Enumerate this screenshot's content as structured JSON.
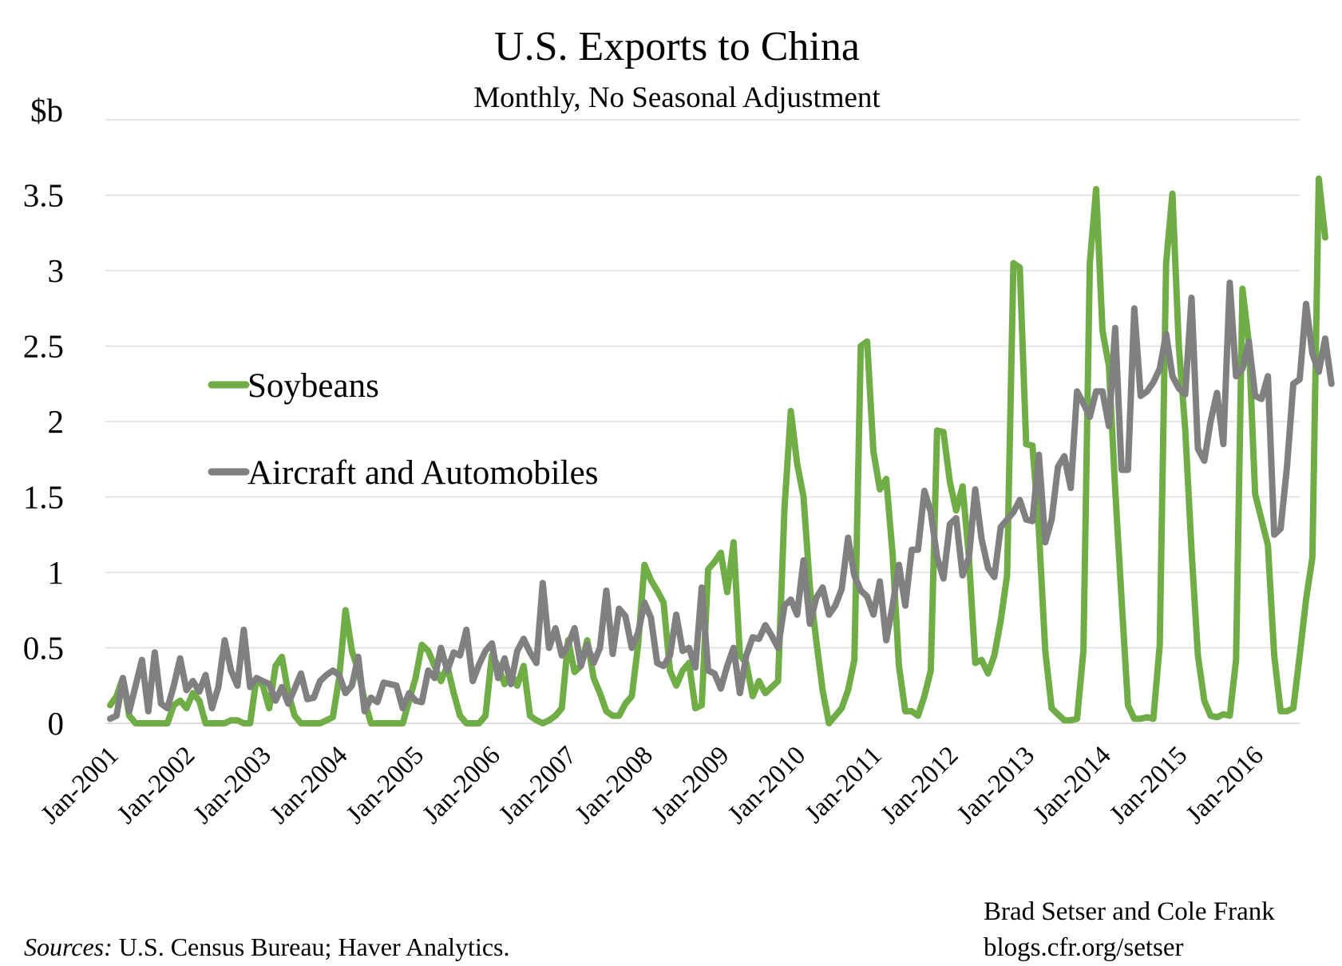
{
  "chart_data": {
    "type": "line",
    "title": "U.S. Exports to China",
    "subtitle": "Monthly, No Seasonal Adjustment",
    "ylabel": "$b",
    "ylim": [
      0,
      4
    ],
    "yticks": [
      {
        "value": 0,
        "label": "0"
      },
      {
        "value": 0.5,
        "label": "0.5"
      },
      {
        "value": 1,
        "label": "1"
      },
      {
        "value": 1.5,
        "label": "1.5"
      },
      {
        "value": 2,
        "label": "2"
      },
      {
        "value": 2.5,
        "label": "2.5"
      },
      {
        "value": 3,
        "label": "3"
      },
      {
        "value": 3.5,
        "label": "3.5"
      },
      {
        "value": 4,
        "label": ""
      }
    ],
    "x_start": "Jan-2001",
    "x_end": "Aug-2016",
    "xticks": [
      "Jan-2001",
      "Jan-2002",
      "Jan-2003",
      "Jan-2004",
      "Jan-2005",
      "Jan-2006",
      "Jan-2007",
      "Jan-2008",
      "Jan-2009",
      "Jan-2010",
      "Jan-2011",
      "Jan-2012",
      "Jan-2013",
      "Jan-2014",
      "Jan-2015",
      "Jan-2016"
    ],
    "grid": true,
    "legend": "center-left",
    "series": [
      {
        "name": "Soybeans",
        "color": "#70ad47",
        "values": [
          0.12,
          0.18,
          0.3,
          0.05,
          0,
          0,
          0,
          0,
          0,
          0,
          0.12,
          0.15,
          0.1,
          0.2,
          0.15,
          0,
          0,
          0,
          0,
          0.02,
          0.02,
          0,
          0,
          0.3,
          0.25,
          0.1,
          0.38,
          0.44,
          0.2,
          0.05,
          0,
          0,
          0,
          0,
          0.02,
          0.04,
          0.3,
          0.75,
          0.48,
          0.35,
          0.15,
          0,
          0,
          0,
          0,
          0,
          0,
          0.15,
          0.3,
          0.52,
          0.48,
          0.38,
          0.28,
          0.38,
          0.2,
          0.05,
          0,
          0,
          0,
          0.05,
          0.45,
          0.38,
          0.26,
          0.33,
          0.25,
          0.38,
          0.05,
          0.02,
          0,
          0.02,
          0.05,
          0.1,
          0.55,
          0.34,
          0.38,
          0.55,
          0.3,
          0.2,
          0.08,
          0.05,
          0.05,
          0.13,
          0.18,
          0.52,
          1.05,
          0.95,
          0.88,
          0.8,
          0.35,
          0.25,
          0.35,
          0.4,
          0.1,
          0.12,
          1.02,
          1.07,
          1.13,
          0.87,
          1.2,
          0.45,
          0.4,
          0.18,
          0.28,
          0.2,
          0.24,
          0.28,
          1.42,
          2.07,
          1.72,
          1.5,
          0.9,
          0.55,
          0.22,
          0,
          0.05,
          0.1,
          0.22,
          0.42,
          2.5,
          2.53,
          1.8,
          1.55,
          1.62,
          1.12,
          0.38,
          0.08,
          0.08,
          0.05,
          0.18,
          0.35,
          1.94,
          1.93,
          1.6,
          1.41,
          1.57,
          1.1,
          0.4,
          0.42,
          0.33,
          0.45,
          0.68,
          0.98,
          3.05,
          3.02,
          1.85,
          1.84,
          1.28,
          0.48,
          0.1,
          0.06,
          0.02,
          0.02,
          0.03,
          0.48,
          3.05,
          3.54,
          2.6,
          2.37,
          1.55,
          0.82,
          0.12,
          0.03,
          0.03,
          0.04,
          0.03,
          0.52,
          3.05,
          3.51,
          2.5,
          1.95,
          1.15,
          0.45,
          0.15,
          0.05,
          0.04,
          0.06,
          0.05,
          0.42,
          2.88,
          2.52,
          1.52,
          1.35,
          1.18,
          0.45,
          0.08,
          0.08,
          0.1,
          0.45,
          0.82,
          1.1,
          3.61,
          3.22
        ]
      },
      {
        "name": "Aircraft and Automobiles",
        "color": "#808080",
        "values": [
          0.03,
          0.05,
          0.3,
          0.08,
          0.25,
          0.42,
          0.08,
          0.47,
          0.13,
          0.1,
          0.25,
          0.43,
          0.22,
          0.28,
          0.21,
          0.32,
          0.1,
          0.24,
          0.55,
          0.35,
          0.25,
          0.62,
          0.24,
          0.3,
          0.28,
          0.26,
          0.15,
          0.24,
          0.13,
          0.23,
          0.33,
          0.16,
          0.17,
          0.28,
          0.32,
          0.35,
          0.32,
          0.2,
          0.25,
          0.44,
          0.08,
          0.17,
          0.14,
          0.27,
          0.26,
          0.25,
          0.1,
          0.2,
          0.15,
          0.14,
          0.35,
          0.3,
          0.5,
          0.35,
          0.47,
          0.45,
          0.62,
          0.28,
          0.39,
          0.48,
          0.53,
          0.3,
          0.43,
          0.26,
          0.48,
          0.56,
          0.47,
          0.4,
          0.93,
          0.5,
          0.63,
          0.45,
          0.52,
          0.63,
          0.38,
          0.52,
          0.4,
          0.5,
          0.88,
          0.46,
          0.76,
          0.71,
          0.5,
          0.6,
          0.8,
          0.7,
          0.4,
          0.38,
          0.45,
          0.72,
          0.48,
          0.5,
          0.37,
          0.9,
          0.35,
          0.33,
          0.23,
          0.38,
          0.5,
          0.2,
          0.45,
          0.57,
          0.56,
          0.65,
          0.58,
          0.5,
          0.78,
          0.82,
          0.72,
          1.08,
          0.66,
          0.83,
          0.9,
          0.72,
          0.78,
          0.89,
          1.23,
          0.98,
          0.88,
          0.84,
          0.72,
          0.94,
          0.55,
          0.78,
          1.05,
          0.78,
          1.15,
          1.15,
          1.54,
          1.4,
          1.1,
          0.96,
          1.32,
          1.36,
          0.98,
          1.1,
          1.55,
          1.22,
          1.03,
          0.97,
          1.3,
          1.35,
          1.4,
          1.48,
          1.35,
          1.34,
          1.78,
          1.2,
          1.35,
          1.7,
          1.77,
          1.56,
          2.2,
          2.12,
          2.03,
          2.2,
          2.2,
          1.97,
          2.62,
          1.68,
          1.68,
          2.75,
          2.17,
          2.2,
          2.26,
          2.35,
          2.58,
          2.3,
          2.22,
          2.18,
          2.82,
          1.82,
          1.74,
          2.0,
          2.19,
          1.85,
          2.92,
          2.3,
          2.35,
          2.53,
          2.17,
          2.15,
          2.3,
          1.25,
          1.29,
          1.7,
          2.25,
          2.28,
          2.78,
          2.45,
          2.33,
          2.55,
          2.25
        ]
      }
    ]
  },
  "legend_entries": [
    "Soybeans",
    "Aircraft and Automobiles"
  ],
  "credit": {
    "authors": "Brad Setser and Cole Frank",
    "url": "blogs.cfr.org/setser"
  },
  "source": {
    "prefix": "Sources:",
    "text": " U.S. Census Bureau; Haver Analytics."
  }
}
